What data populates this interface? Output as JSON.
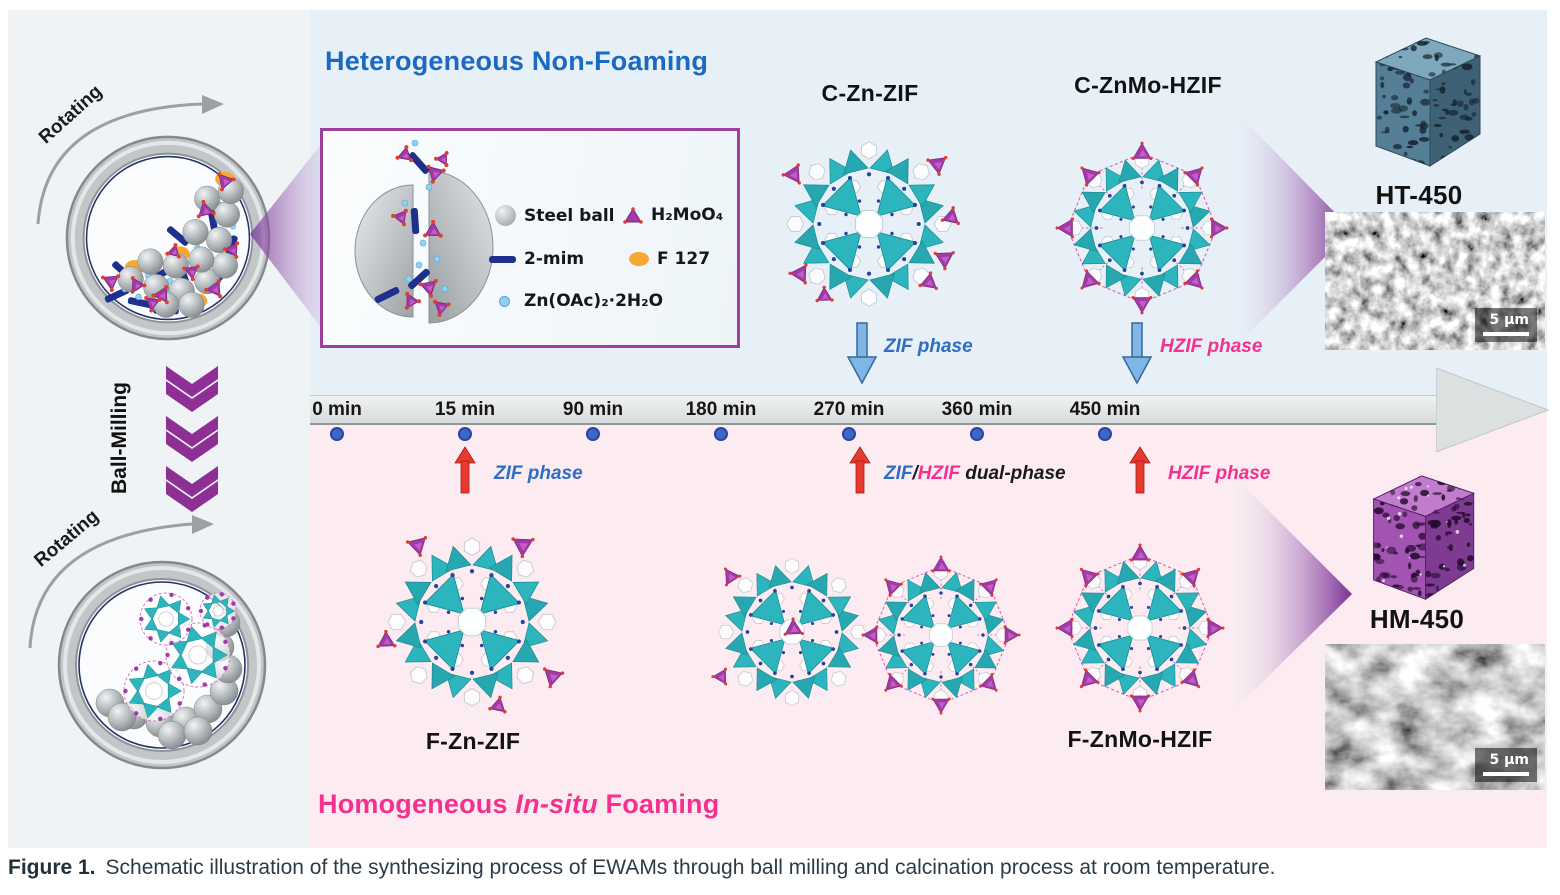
{
  "figure": {
    "caption_label": "Figure 1.",
    "caption_text": "Schematic illustration of the synthesizing process of EWAMs through ball milling and calcination process at room temperature."
  },
  "sections": {
    "top_title": "Heterogeneous Non-Foaming",
    "bottom_title_prefix": "Homogeneous ",
    "bottom_title_italic": "In-situ",
    "bottom_title_suffix": " Foaming"
  },
  "left_panel": {
    "rotating_top": "Rotating",
    "ball_milling": "Ball-Milling",
    "rotating_bottom": "Rotating"
  },
  "legend": {
    "items": [
      {
        "icon": "steel-ball-icon",
        "label": "Steel ball"
      },
      {
        "icon": "h2moo4-icon",
        "label": "H₂MoO₄"
      },
      {
        "icon": "mim-bar-icon",
        "label": "2-mim"
      },
      {
        "icon": "f127-icon",
        "label": "F 127"
      },
      {
        "icon": "zn-acetate-icon",
        "label": "Zn(OAc)₂·2H₂O"
      }
    ]
  },
  "materials": {
    "c_zn_zif": "C-Zn-ZIF",
    "c_znmo_hzif": "C-ZnMo-HZIF",
    "f_zn_zif": "F-Zn-ZIF",
    "f_znmo_hzif": "F-ZnMo-HZIF",
    "ht_450": "HT-450",
    "hm_450": "HM-450"
  },
  "timeline": {
    "ticks": [
      "0 min",
      "15 min",
      "90 min",
      "180 min",
      "270 min",
      "360 min",
      "450 min"
    ]
  },
  "phases": {
    "top_zif": "ZIF phase",
    "top_hzif": "HZIF phase",
    "bottom_zif": "ZIF phase",
    "bottom_dual_zif": "ZIF",
    "bottom_dual_slash": "/",
    "bottom_dual_hzif": "HZIF",
    "bottom_dual_rest": " dual-phase",
    "bottom_hzif": "HZIF phase"
  },
  "scale_bars": {
    "ht": "5 μm",
    "hm": "5 μm"
  },
  "colors": {
    "top_title": "#1a6ac1",
    "bottom_title": "#f5318f",
    "zif_phase_blue": "#2f6ec2",
    "hzif_phase_pink": "#f5318f",
    "purple_accent": "#8e2f96",
    "timeline_dot": "#3a67c9",
    "red_arrow": "#e8392e",
    "blue_arrow": "#7fb6e4",
    "cage_teal": "#2db5bd",
    "cage_purple": "#a23aa5",
    "top_background": "#e7f0f7",
    "bottom_background": "#fcecf1"
  }
}
